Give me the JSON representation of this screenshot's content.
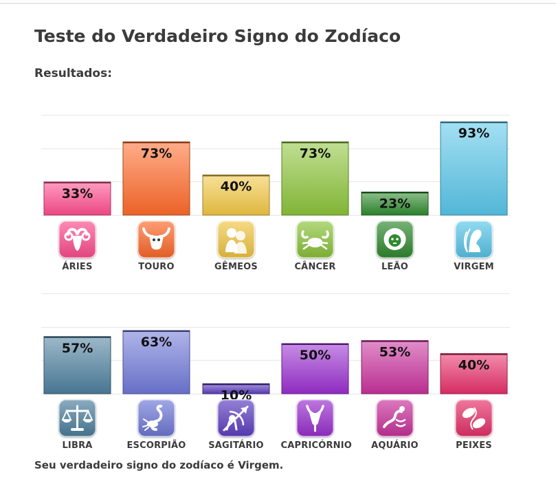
{
  "page": {
    "title": "Teste do Verdadeiro Signo do Zodíaco",
    "subtitle": "Resultados:",
    "result_text": "Seu verdadeiro signo do zodíaco é Virgem."
  },
  "chart_data": [
    {
      "type": "bar",
      "categories": [
        "ÁRIES",
        "TOURO",
        "GÊMEOS",
        "CÂNCER",
        "LEÃO",
        "VIRGEM"
      ],
      "values": [
        33,
        73,
        40,
        73,
        23,
        93
      ],
      "labels": [
        "33%",
        "73%",
        "40%",
        "73%",
        "23%",
        "93%"
      ],
      "colors": [
        "#ff4d8d",
        "#ff6a2a",
        "#f2c744",
        "#8cc43a",
        "#2f8a2f",
        "#59c6ea"
      ],
      "icons": [
        "aries-ram-icon",
        "taurus-bull-icon",
        "gemini-twins-icon",
        "cancer-crab-icon",
        "leo-lion-icon",
        "virgo-maiden-icon"
      ],
      "ylim": [
        0,
        100
      ],
      "grid": true
    },
    {
      "type": "bar",
      "categories": [
        "LIBRA",
        "ESCORPIÃO",
        "SAGITÁRIO",
        "CAPRICÓRNIO",
        "AQUÁRIO",
        "PEIXES"
      ],
      "values": [
        57,
        63,
        10,
        50,
        53,
        40
      ],
      "labels": [
        "57%",
        "63%",
        "10%",
        "50%",
        "53%",
        "40%"
      ],
      "colors": [
        "#4d7f9e",
        "#6f79d8",
        "#5d3fc2",
        "#9a2fd0",
        "#c9329c",
        "#e8306a"
      ],
      "icons": [
        "libra-scales-icon",
        "scorpio-scorpion-icon",
        "sagittarius-archer-icon",
        "capricorn-goat-icon",
        "aquarius-water-bearer-icon",
        "pisces-fish-icon"
      ],
      "ylim": [
        0,
        100
      ],
      "grid": true
    }
  ]
}
